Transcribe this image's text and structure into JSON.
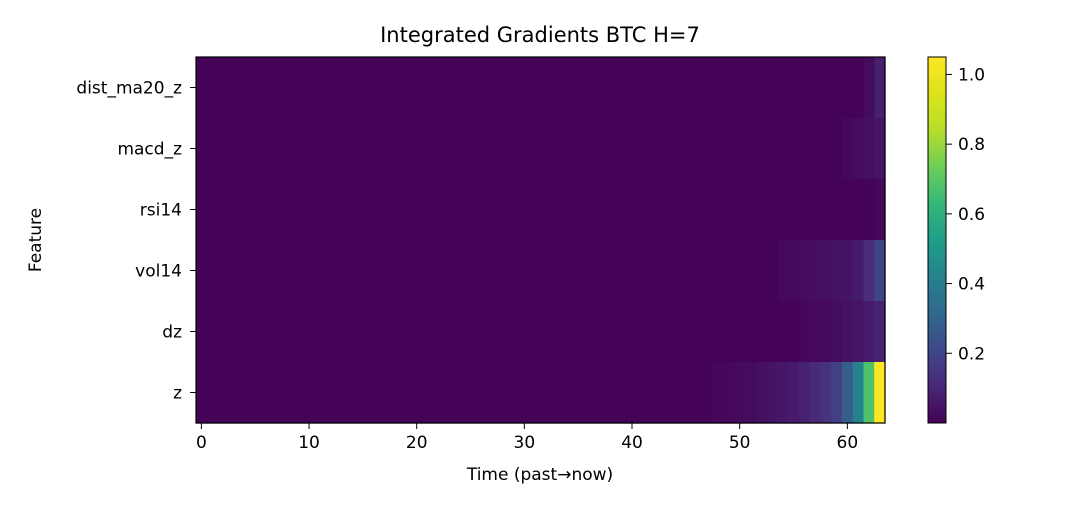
{
  "chart_data": {
    "type": "heatmap",
    "title": "Integrated Gradients BTC H=7",
    "xlabel": "Time (past→now)",
    "ylabel": "Feature",
    "x_ticks": [
      0,
      10,
      20,
      30,
      40,
      50,
      60
    ],
    "xlim": [
      -0.5,
      63.5
    ],
    "rows": [
      "dist_ma20_z",
      "macd_z",
      "rsi14",
      "vol14",
      "dz",
      "z"
    ],
    "colormap": "viridis",
    "color_range": [
      0.0,
      1.05
    ],
    "colorbar_ticks": [
      "0.2",
      "0.4",
      "0.6",
      "0.8",
      "1.0"
    ],
    "colorbar_tick_values": [
      0.2,
      0.4,
      0.6,
      0.8,
      1.0
    ],
    "default_value": 0.005,
    "values": {
      "dist_ma20_z": {
        "62": 0.03,
        "63": 0.08
      },
      "macd_z": {
        "60": 0.02,
        "61": 0.03,
        "62": 0.04,
        "63": 0.05
      },
      "rsi14": {
        "62": 0.01,
        "63": 0.015
      },
      "vol14": {
        "54": 0.02,
        "55": 0.025,
        "56": 0.03,
        "57": 0.035,
        "58": 0.04,
        "59": 0.045,
        "60": 0.05,
        "61": 0.07,
        "62": 0.12,
        "63": 0.2
      },
      "dz": {
        "56": 0.015,
        "57": 0.02,
        "58": 0.025,
        "59": 0.03,
        "60": 0.04,
        "61": 0.05,
        "62": 0.07,
        "63": 0.09
      },
      "z": {
        "48": 0.015,
        "49": 0.02,
        "50": 0.025,
        "51": 0.03,
        "52": 0.04,
        "53": 0.05,
        "54": 0.06,
        "55": 0.07,
        "56": 0.09,
        "57": 0.11,
        "58": 0.14,
        "59": 0.18,
        "60": 0.28,
        "61": 0.42,
        "62": 0.68,
        "63": 1.05
      }
    }
  }
}
